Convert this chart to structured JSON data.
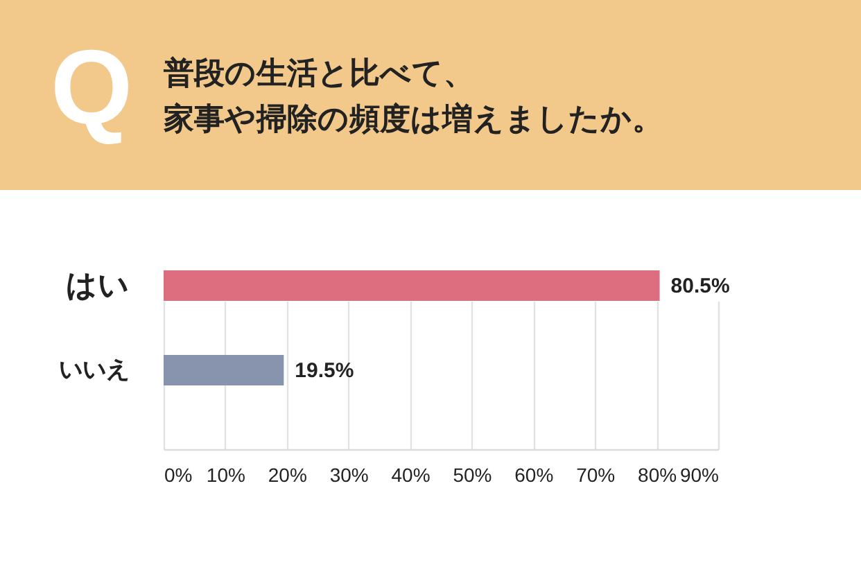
{
  "chart_data": {
    "type": "bar",
    "orientation": "horizontal",
    "title": "普段の生活と比べて、家事や掃除の頻度は増えましたか。",
    "annotations": [
      "Q"
    ],
    "categories": [
      "はい",
      "いいえ"
    ],
    "values": [
      80.5,
      19.5
    ],
    "colors": [
      "#dc6e80",
      "#8893ad"
    ],
    "value_labels": [
      "80.5%",
      "19.5%"
    ],
    "xlim": [
      0,
      90
    ],
    "xticks": [
      {
        "value": 0,
        "label": "0%"
      },
      {
        "value": 10,
        "label": "10%"
      },
      {
        "value": 20,
        "label": "20%"
      },
      {
        "value": 30,
        "label": "30%"
      },
      {
        "value": 40,
        "label": "40%"
      },
      {
        "value": 50,
        "label": "50%"
      },
      {
        "value": 60,
        "label": "60%"
      },
      {
        "value": 70,
        "label": "70%"
      },
      {
        "value": 80,
        "label": "80%"
      },
      {
        "value": 90,
        "label": "90%"
      }
    ],
    "grid": "x"
  }
}
